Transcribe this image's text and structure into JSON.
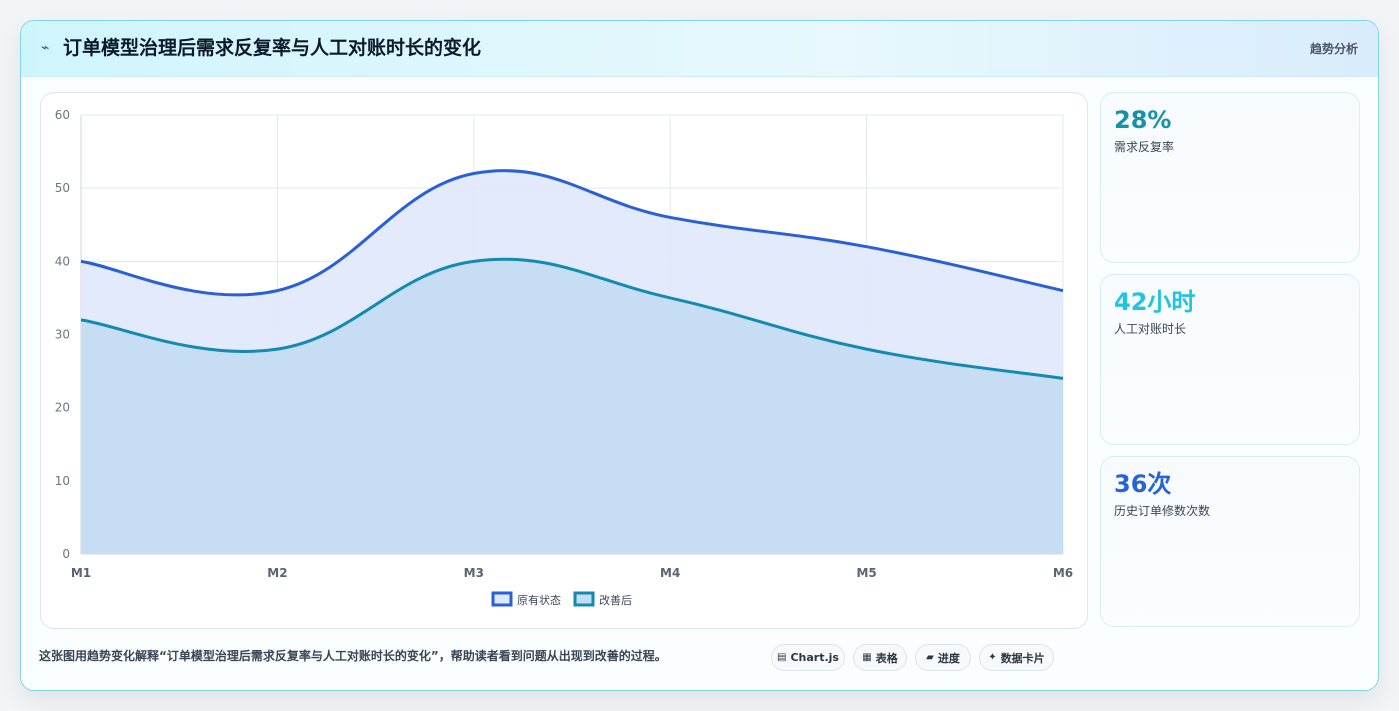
{
  "header": {
    "title": "订单模型治理后需求反复率与人工对账时长的变化",
    "tag": "趋势分析"
  },
  "stats": [
    {
      "value": "28%",
      "label": "需求反复率",
      "color": "#1592a9"
    },
    {
      "value": "42小时",
      "label": "人工对账时长",
      "color": "#22c3de"
    },
    {
      "value": "36次",
      "label": "历史订单修数次数",
      "color": "#2563d9"
    }
  ],
  "footer": {
    "description": "这张图用趋势变化解释“订单模型治理后需求反复率与人工对账时长的变化”，帮助读者看到问题从出现到改善的过程。",
    "chips": [
      {
        "icon": "chart-icon",
        "glyph": "▤",
        "label": "Chart.js"
      },
      {
        "icon": "table-icon",
        "glyph": "▦",
        "label": "表格"
      },
      {
        "icon": "progress-icon",
        "glyph": "▰",
        "label": "进度"
      },
      {
        "icon": "card-icon",
        "glyph": "✦",
        "label": "数据卡片"
      }
    ]
  },
  "chart_data": {
    "type": "area",
    "categories": [
      "M1",
      "M2",
      "M3",
      "M4",
      "M5",
      "M6"
    ],
    "series": [
      {
        "name": "原有状态",
        "values": [
          40,
          36,
          52,
          46,
          42,
          36
        ],
        "color": "#2a5fd6",
        "fill": "#dfe8fb"
      },
      {
        "name": "改善后",
        "values": [
          32,
          28,
          40,
          35,
          28,
          24
        ],
        "color": "#138aaf",
        "fill": "#c4dcf2"
      }
    ],
    "ylim": [
      0,
      60
    ],
    "yticks": [
      0,
      10,
      20,
      30,
      40,
      50,
      60
    ],
    "grid": true,
    "legend": "bottom"
  }
}
